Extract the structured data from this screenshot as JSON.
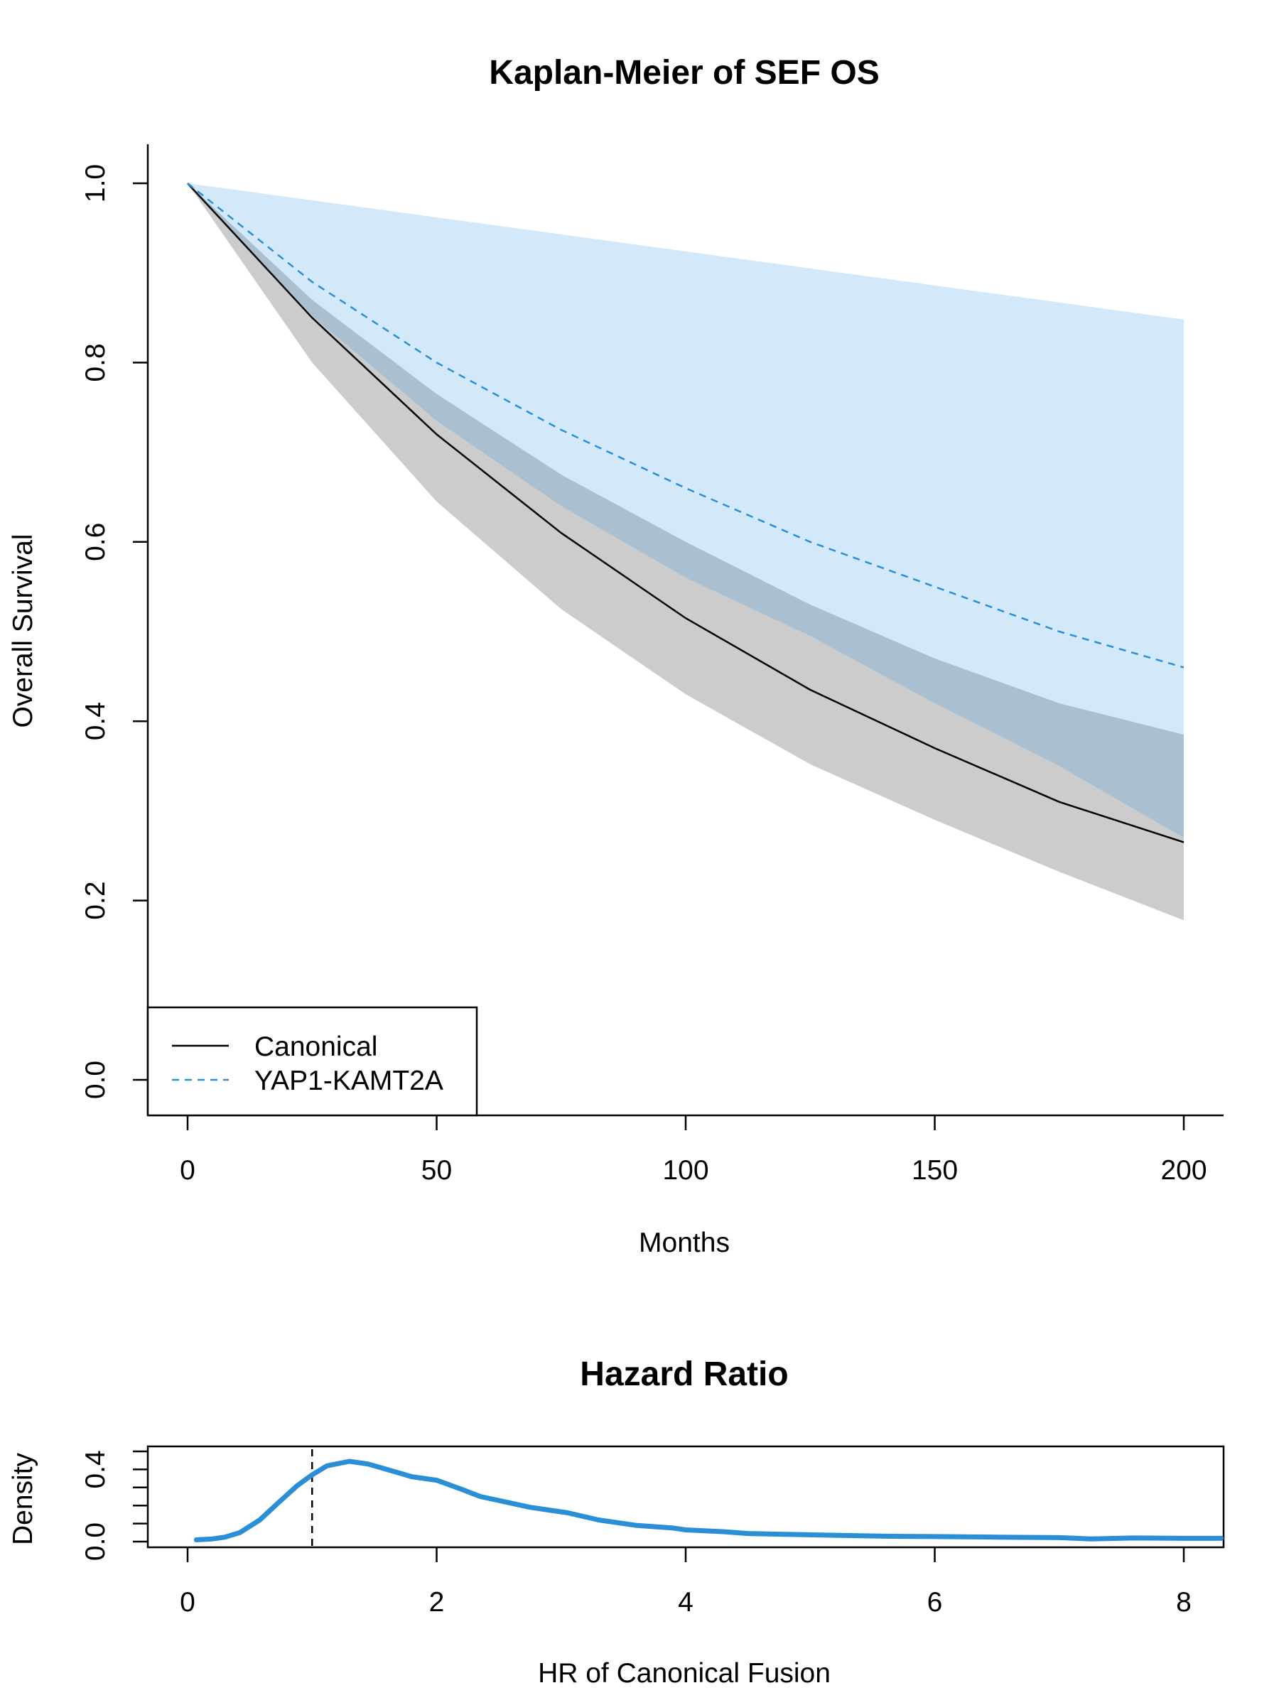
{
  "chart_data": [
    {
      "type": "line",
      "title": "Kaplan-Meier of SEF OS",
      "xlabel": "Months",
      "ylabel": "Overall Survival",
      "xlim": [
        0,
        200
      ],
      "ylim": [
        0,
        1
      ],
      "xticks": [
        "0",
        "50",
        "100",
        "150",
        "200"
      ],
      "yticks": [
        "0.0",
        "0.2",
        "0.4",
        "0.6",
        "0.8",
        "1.0"
      ],
      "x": [
        0,
        25,
        50,
        75,
        100,
        125,
        150,
        175,
        200
      ],
      "series": [
        {
          "name": "Canonical",
          "color": "#000000",
          "dash": "solid",
          "values": [
            1.0,
            0.85,
            0.72,
            0.61,
            0.515,
            0.435,
            0.37,
            0.31,
            0.265
          ],
          "ci_lower": [
            1.0,
            0.8,
            0.645,
            0.525,
            0.43,
            0.352,
            0.29,
            0.232,
            0.178
          ],
          "ci_upper": [
            1.0,
            0.87,
            0.765,
            0.675,
            0.6,
            0.53,
            0.47,
            0.42,
            0.385
          ],
          "ci_color": "#cccccc"
        },
        {
          "name": "YAP1-KAMT2A",
          "color": "#2b8fd6",
          "dash": "dashed",
          "values": [
            1.0,
            0.89,
            0.8,
            0.725,
            0.66,
            0.6,
            0.55,
            0.5,
            0.46
          ],
          "ci_lower": [
            1.0,
            0.852,
            0.735,
            0.64,
            0.56,
            0.495,
            0.42,
            0.35,
            0.27
          ],
          "ci_upper": [
            1.0,
            0.981,
            0.962,
            0.943,
            0.924,
            0.905,
            0.886,
            0.867,
            0.848
          ],
          "ci_color": "#d3e8f8"
        }
      ],
      "overlap_color": "#aac0d0",
      "legend": {
        "position": "bottom-left",
        "entries": [
          "Canonical",
          "YAP1-KAMT2A"
        ]
      },
      "grid": false
    },
    {
      "type": "line",
      "title": "Hazard Ratio",
      "xlabel": "HR of Canonical Fusion",
      "ylabel": "Density",
      "xlim": [
        0,
        8
      ],
      "ylim": [
        0,
        0.5
      ],
      "xticks": [
        "0",
        "2",
        "4",
        "6",
        "8"
      ],
      "yticks": [
        "0.0",
        "0.4"
      ],
      "reference_line_x": 1,
      "series": [
        {
          "name": "",
          "color": "#2b8fd6",
          "x": [
            0.07,
            0.2,
            0.3,
            0.42,
            0.58,
            0.72,
            0.88,
            1.0,
            1.12,
            1.3,
            1.45,
            1.6,
            1.8,
            2.0,
            2.2,
            2.35,
            2.55,
            2.75,
            3.05,
            3.3,
            3.6,
            3.9,
            4.0,
            4.3,
            4.5,
            4.8,
            5.2,
            5.6,
            6.0,
            6.5,
            7.0,
            7.25,
            7.6,
            8.0,
            8.3
          ],
          "values": [
            0.01,
            0.015,
            0.025,
            0.05,
            0.12,
            0.21,
            0.31,
            0.37,
            0.42,
            0.445,
            0.43,
            0.4,
            0.36,
            0.34,
            0.29,
            0.25,
            0.22,
            0.19,
            0.16,
            0.12,
            0.09,
            0.075,
            0.065,
            0.055,
            0.045,
            0.04,
            0.035,
            0.03,
            0.028,
            0.025,
            0.022,
            0.015,
            0.02,
            0.018,
            0.018
          ]
        }
      ],
      "grid": false
    }
  ]
}
